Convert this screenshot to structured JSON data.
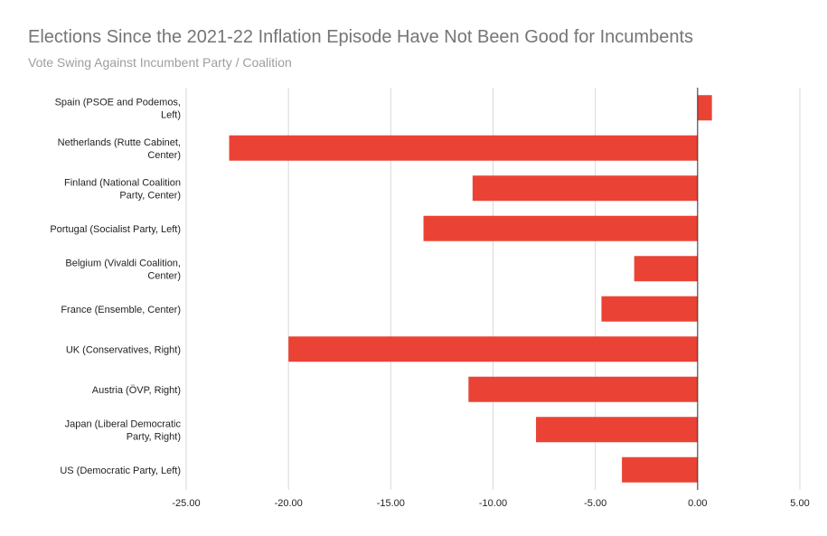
{
  "chart_data": {
    "type": "bar",
    "orientation": "horizontal",
    "title": "Elections Since the 2021-22 Inflation Episode Have Not Been Good for Incumbents",
    "subtitle": "Vote Swing Against Incumbent Party / Coalition",
    "xlabel": "",
    "ylabel": "",
    "xlim": [
      -25,
      5
    ],
    "x_ticks": [
      -25,
      -20,
      -15,
      -10,
      -5,
      0,
      5
    ],
    "x_tick_labels": [
      "-25.00",
      "-20.00",
      "-15.00",
      "-10.00",
      "-5.00",
      "0.00",
      "5.00"
    ],
    "grid": "vertical",
    "legend": "none",
    "bar_color": "#ea4335",
    "categories": [
      [
        "Spain (PSOE and Podemos,",
        "Left)"
      ],
      [
        "Netherlands (Rutte Cabinet,",
        "Center)"
      ],
      [
        "Finland (National Coalition",
        "Party, Center)"
      ],
      [
        "Portugal (Socialist Party, Left)"
      ],
      [
        "Belgium (Vivaldi Coalition,",
        "Center)"
      ],
      [
        "France (Ensemble, Center)"
      ],
      [
        "UK (Conservatives, Right)"
      ],
      [
        "Austria (ÖVP, Right)"
      ],
      [
        "Japan (Liberal Democratic",
        "Party, Right)"
      ],
      [
        "US (Democratic Party, Left)"
      ]
    ],
    "values": [
      0.7,
      -22.9,
      -11.0,
      -13.4,
      -3.1,
      -4.7,
      -20.0,
      -11.2,
      -7.9,
      -3.7
    ]
  }
}
